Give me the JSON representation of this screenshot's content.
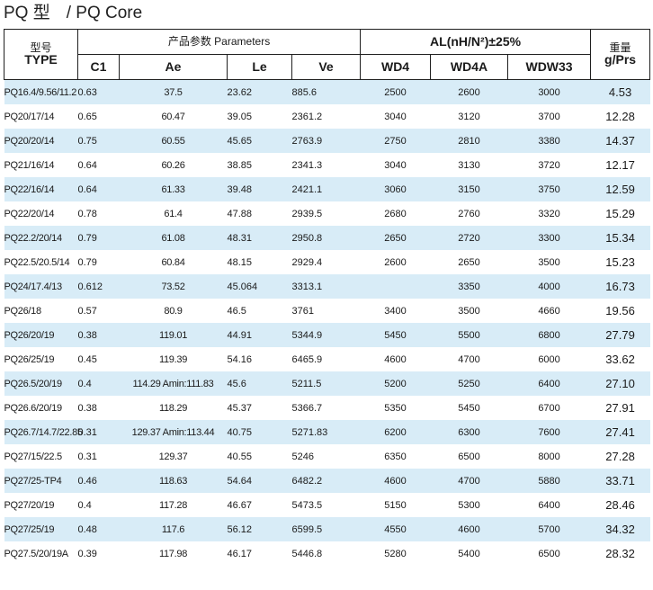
{
  "page_title": {
    "main": "PQ 型",
    "sub": "/ PQ Core"
  },
  "table": {
    "header": {
      "type_cn": "型号",
      "type_en": "TYPE",
      "params_group": "产品参数  Parameters",
      "al_group": "AL(nH/N²)±25%",
      "weight_cn": "重量",
      "weight_en": "g/Prs",
      "cols": [
        "C1",
        "Ae",
        "Le",
        "Ve",
        "WD4",
        "WD4A",
        "WDW33"
      ]
    },
    "rows": [
      [
        "PQ16.4/9.56/11.2",
        "0.63",
        "37.5",
        "23.62",
        "885.6",
        "2500",
        "2600",
        "3000",
        "4.53"
      ],
      [
        "PQ20/17/14",
        "0.65",
        "60.47",
        "39.05",
        "2361.2",
        "3040",
        "3120",
        "3700",
        "12.28"
      ],
      [
        "PQ20/20/14",
        "0.75",
        "60.55",
        "45.65",
        "2763.9",
        "2750",
        "2810",
        "3380",
        "14.37"
      ],
      [
        "PQ21/16/14",
        "0.64",
        "60.26",
        "38.85",
        "2341.3",
        "3040",
        "3130",
        "3720",
        "12.17"
      ],
      [
        "PQ22/16/14",
        "0.64",
        "61.33",
        "39.48",
        "2421.1",
        "3060",
        "3150",
        "3750",
        "12.59"
      ],
      [
        "PQ22/20/14",
        "0.78",
        "61.4",
        "47.88",
        "2939.5",
        "2680",
        "2760",
        "3320",
        "15.29"
      ],
      [
        "PQ22.2/20/14",
        "0.79",
        "61.08",
        "48.31",
        "2950.8",
        "2650",
        "2720",
        "3300",
        "15.34"
      ],
      [
        "PQ22.5/20.5/14",
        "0.79",
        "60.84",
        "48.15",
        "2929.4",
        "2600",
        "2650",
        "3500",
        "15.23"
      ],
      [
        "PQ24/17.4/13",
        "0.612",
        "73.52",
        "45.064",
        "3313.1",
        "",
        "3350",
        "4000",
        "16.73"
      ],
      [
        "PQ26/18",
        "0.57",
        "80.9",
        "46.5",
        "3761",
        "3400",
        "3500",
        "4660",
        "19.56"
      ],
      [
        "PQ26/20/19",
        "0.38",
        "119.01",
        "44.91",
        "5344.9",
        "5450",
        "5500",
        "6800",
        "27.79"
      ],
      [
        "PQ26/25/19",
        "0.45",
        "119.39",
        "54.16",
        "6465.9",
        "4600",
        "4700",
        "6000",
        "33.62"
      ],
      [
        "PQ26.5/20/19",
        "0.4",
        "114.29 Amin:111.83",
        "45.6",
        "5211.5",
        "5200",
        "5250",
        "6400",
        "27.10"
      ],
      [
        "PQ26.6/20/19",
        "0.38",
        "118.29",
        "45.37",
        "5366.7",
        "5350",
        "5450",
        "6700",
        "27.91"
      ],
      [
        "PQ26.7/14.7/22.85",
        "0.31",
        "129.37 Amin:113.44",
        "40.75",
        "5271.83",
        "6200",
        "6300",
        "7600",
        "27.41"
      ],
      [
        "PQ27/15/22.5",
        "0.31",
        "129.37",
        "40.55",
        "5246",
        "6350",
        "6500",
        "8000",
        "27.28"
      ],
      [
        "PQ27/25-TP4",
        "0.46",
        "118.63",
        "54.64",
        "6482.2",
        "4600",
        "4700",
        "5880",
        "33.71"
      ],
      [
        "PQ27/20/19",
        "0.4",
        "117.28",
        "46.67",
        "5473.5",
        "5150",
        "5300",
        "6400",
        "28.46"
      ],
      [
        "PQ27/25/19",
        "0.48",
        "117.6",
        "56.12",
        "6599.5",
        "4550",
        "4600",
        "5700",
        "34.32"
      ],
      [
        "PQ27.5/20/19A",
        "0.39",
        "117.98",
        "46.17",
        "5446.8",
        "5280",
        "5400",
        "6500",
        "28.32"
      ]
    ]
  }
}
